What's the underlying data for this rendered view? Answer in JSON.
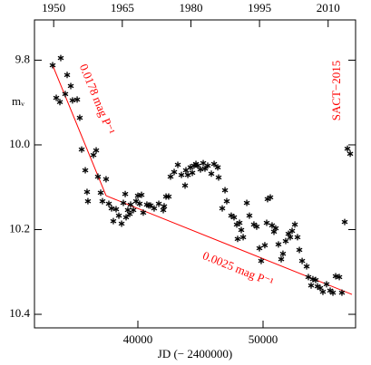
{
  "chart_data": {
    "type": "scatter",
    "x_label": "JD (− 2400000)",
    "y_label": "mᵥ",
    "xlim": [
      31740,
      57390
    ],
    "xticks": [
      40000,
      50000
    ],
    "x2lim": [
      1945.8,
      2016.0
    ],
    "x2ticks": [
      1950,
      1965,
      1980,
      1995,
      2010
    ],
    "ylim": [
      10.432,
      9.705
    ],
    "yticks": [
      9.8,
      {
        "value": 10.0,
        "label": "10.0"
      },
      10.2,
      10.4
    ],
    "color": "#000000",
    "x": [
      33190,
      33840,
      33480,
      33770,
      34200,
      34350,
      34640,
      34780,
      35150,
      35360,
      35510,
      35800,
      35940,
      36010,
      36450,
      36670,
      36810,
      37030,
      37170,
      37460,
      37680,
      37900,
      38040,
      38260,
      38480,
      38700,
      38840,
      38990,
      39060,
      39200,
      39350,
      39420,
      39640,
      39860,
      40000,
      40140,
      40290,
      40430,
      40720,
      40870,
      41010,
      41300,
      41670,
      42030,
      42100,
      42250,
      42460,
      42610,
      42900,
      43190,
      43480,
      43770,
      43840,
      43990,
      44200,
      44350,
      44490,
      44640,
      44780,
      45000,
      45220,
      45360,
      45580,
      45870,
      46090,
      46380,
      46450,
      46740,
      46960,
      47100,
      47460,
      47680,
      47900,
      47970,
      48120,
      48260,
      48410,
      48700,
      48910,
      49270,
      49490,
      49710,
      49850,
      50140,
      50290,
      50360,
      50580,
      50720,
      50870,
      51010,
      51230,
      51450,
      51590,
      51810,
      52030,
      52170,
      52320,
      52540,
      52750,
      52900,
      53120,
      53480,
      53620,
      53840,
      53980,
      54200,
      54350,
      54560,
      54780,
      55070,
      55360,
      55580,
      55800,
      56090,
      56300,
      56520,
      56740,
      56960
    ],
    "values": [
      9.812,
      9.795,
      9.889,
      9.899,
      9.88,
      9.835,
      9.861,
      9.895,
      9.893,
      9.936,
      10.011,
      10.06,
      10.111,
      10.133,
      10.024,
      10.013,
      10.075,
      10.113,
      10.133,
      10.081,
      10.139,
      10.15,
      10.18,
      10.152,
      10.167,
      10.186,
      10.137,
      10.116,
      10.171,
      10.154,
      10.163,
      10.141,
      10.154,
      10.133,
      10.12,
      10.139,
      10.118,
      10.16,
      10.141,
      10.143,
      10.143,
      10.15,
      10.139,
      10.154,
      10.145,
      10.122,
      10.122,
      10.075,
      10.064,
      10.047,
      10.071,
      10.096,
      10.06,
      10.071,
      10.053,
      10.066,
      10.049,
      10.045,
      10.049,
      10.058,
      10.043,
      10.056,
      10.049,
      10.068,
      10.045,
      10.053,
      10.077,
      10.15,
      10.107,
      10.133,
      10.167,
      10.171,
      10.188,
      10.222,
      10.184,
      10.201,
      10.218,
      10.137,
      10.167,
      10.188,
      10.193,
      10.244,
      10.274,
      10.237,
      10.184,
      10.128,
      10.124,
      10.19,
      10.205,
      10.197,
      10.235,
      10.27,
      10.257,
      10.227,
      10.21,
      10.218,
      10.203,
      10.188,
      10.218,
      10.248,
      10.274,
      10.287,
      10.312,
      10.332,
      10.317,
      10.319,
      10.334,
      10.338,
      10.347,
      10.329,
      10.344,
      10.349,
      10.31,
      10.312,
      10.349,
      10.182,
      10.009,
      10.021
    ],
    "fit_color": "#ff0000",
    "fits": [
      {
        "x": [
          33190,
          37460
        ],
        "values": [
          9.812,
          10.12
        ],
        "label": "0.0178 mag P⁻¹"
      },
      {
        "x": [
          37460,
          57100
        ],
        "values": [
          10.12,
          10.353
        ],
        "label": "0.0025 mag P⁻¹"
      }
    ],
    "annotation": "SACT−2015"
  }
}
